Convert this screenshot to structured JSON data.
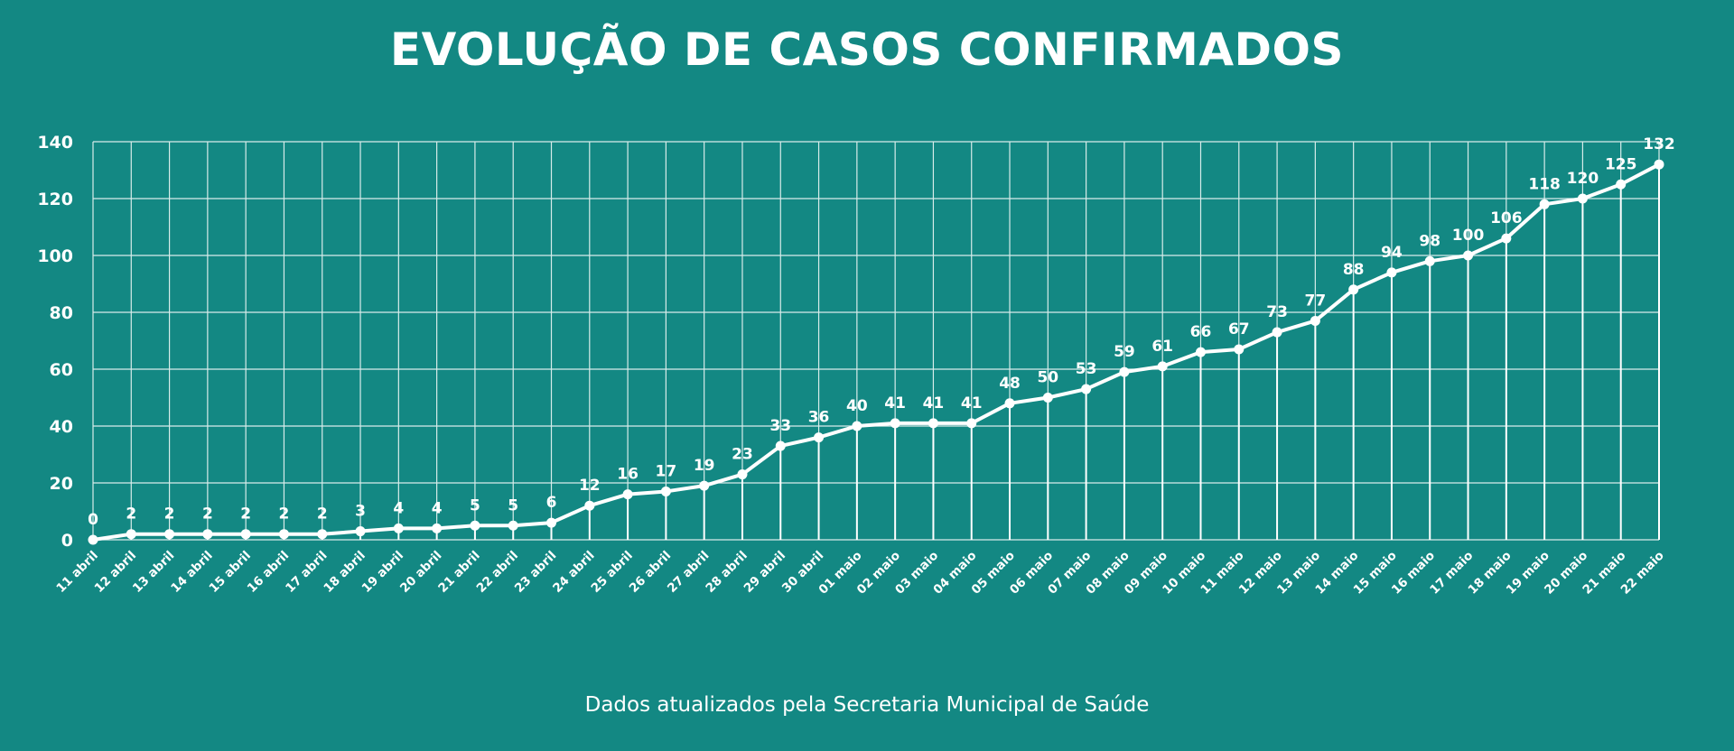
{
  "chart_data": {
    "type": "line",
    "title": "EVOLUÇÃO DE CASOS CONFIRMADOS",
    "xlabel": "",
    "ylabel": "",
    "ylim": [
      0,
      140
    ],
    "yticks": [
      0,
      20,
      40,
      60,
      80,
      100,
      120,
      140
    ],
    "grid": true,
    "legend": "none",
    "data_labels": true,
    "categories": [
      "11 abril",
      "12 abril",
      "13 abril",
      "14 abril",
      "15 abril",
      "16 abril",
      "17 abril",
      "18 abril",
      "19 abril",
      "20 abril",
      "21 abril",
      "22 abril",
      "23 abril",
      "24 abril",
      "25 abril",
      "26 abril",
      "27 abril",
      "28 abril",
      "29 abril",
      "30 abril",
      "01 maio",
      "02 maio",
      "03 maio",
      "04 maio",
      "05 maio",
      "06 maio",
      "07 maio",
      "08 maio",
      "09 maio",
      "10 maio",
      "11 maio",
      "12 maio",
      "13 maio",
      "14 maio",
      "15 maio",
      "16 maio",
      "17 maio",
      "18 maio",
      "19 maio",
      "20 maio",
      "21 maio",
      "22 maio"
    ],
    "values": [
      0,
      2,
      2,
      2,
      2,
      2,
      2,
      3,
      4,
      4,
      5,
      5,
      6,
      12,
      16,
      17,
      19,
      23,
      33,
      36,
      40,
      41,
      41,
      41,
      48,
      50,
      53,
      59,
      61,
      66,
      67,
      73,
      77,
      88,
      94,
      98,
      100,
      106,
      118,
      120,
      125,
      132
    ],
    "colors": {
      "background": "#138883",
      "line": "#ffffff",
      "grid": "#d8ecea"
    }
  },
  "footnote": "Dados atualizados pela Secretaria Municipal de Saúde"
}
